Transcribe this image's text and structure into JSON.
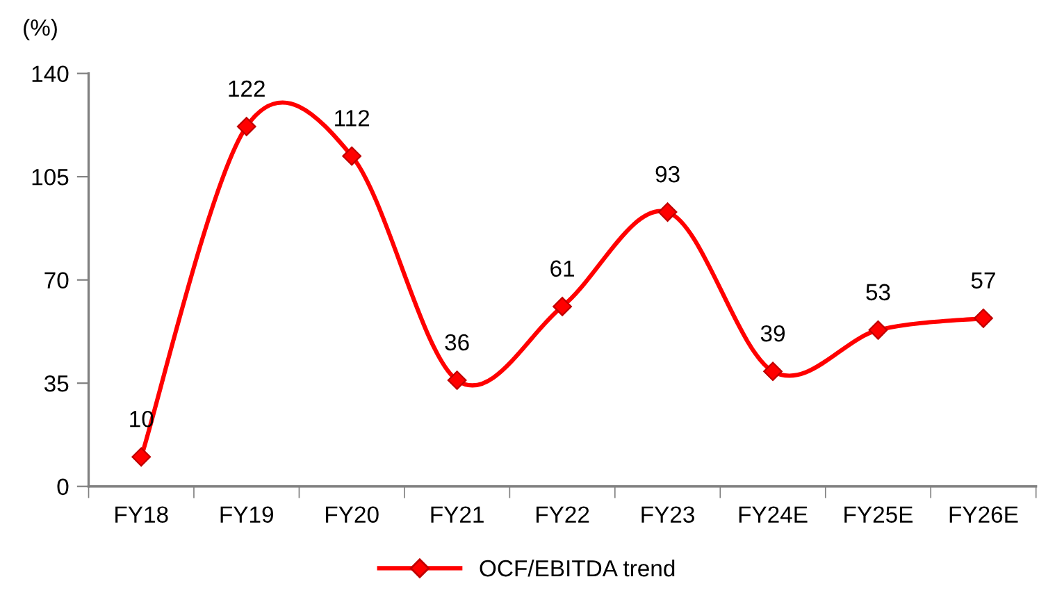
{
  "chart_data": {
    "type": "line",
    "ylabel": "(%)",
    "categories": [
      "FY18",
      "FY19",
      "FY20",
      "FY21",
      "FY22",
      "FY23",
      "FY24E",
      "FY25E",
      "FY26E"
    ],
    "series": [
      {
        "name": "OCF/EBITDA trend",
        "color": "#ff0000",
        "values": [
          10,
          122,
          112,
          36,
          61,
          93,
          39,
          53,
          57
        ]
      }
    ],
    "ylim": [
      0,
      140
    ],
    "yticks": [
      0,
      35,
      70,
      105,
      140
    ],
    "data_labels": true,
    "grid": false,
    "legend": "bottom",
    "marker": "diamond",
    "line_style": "solid"
  }
}
